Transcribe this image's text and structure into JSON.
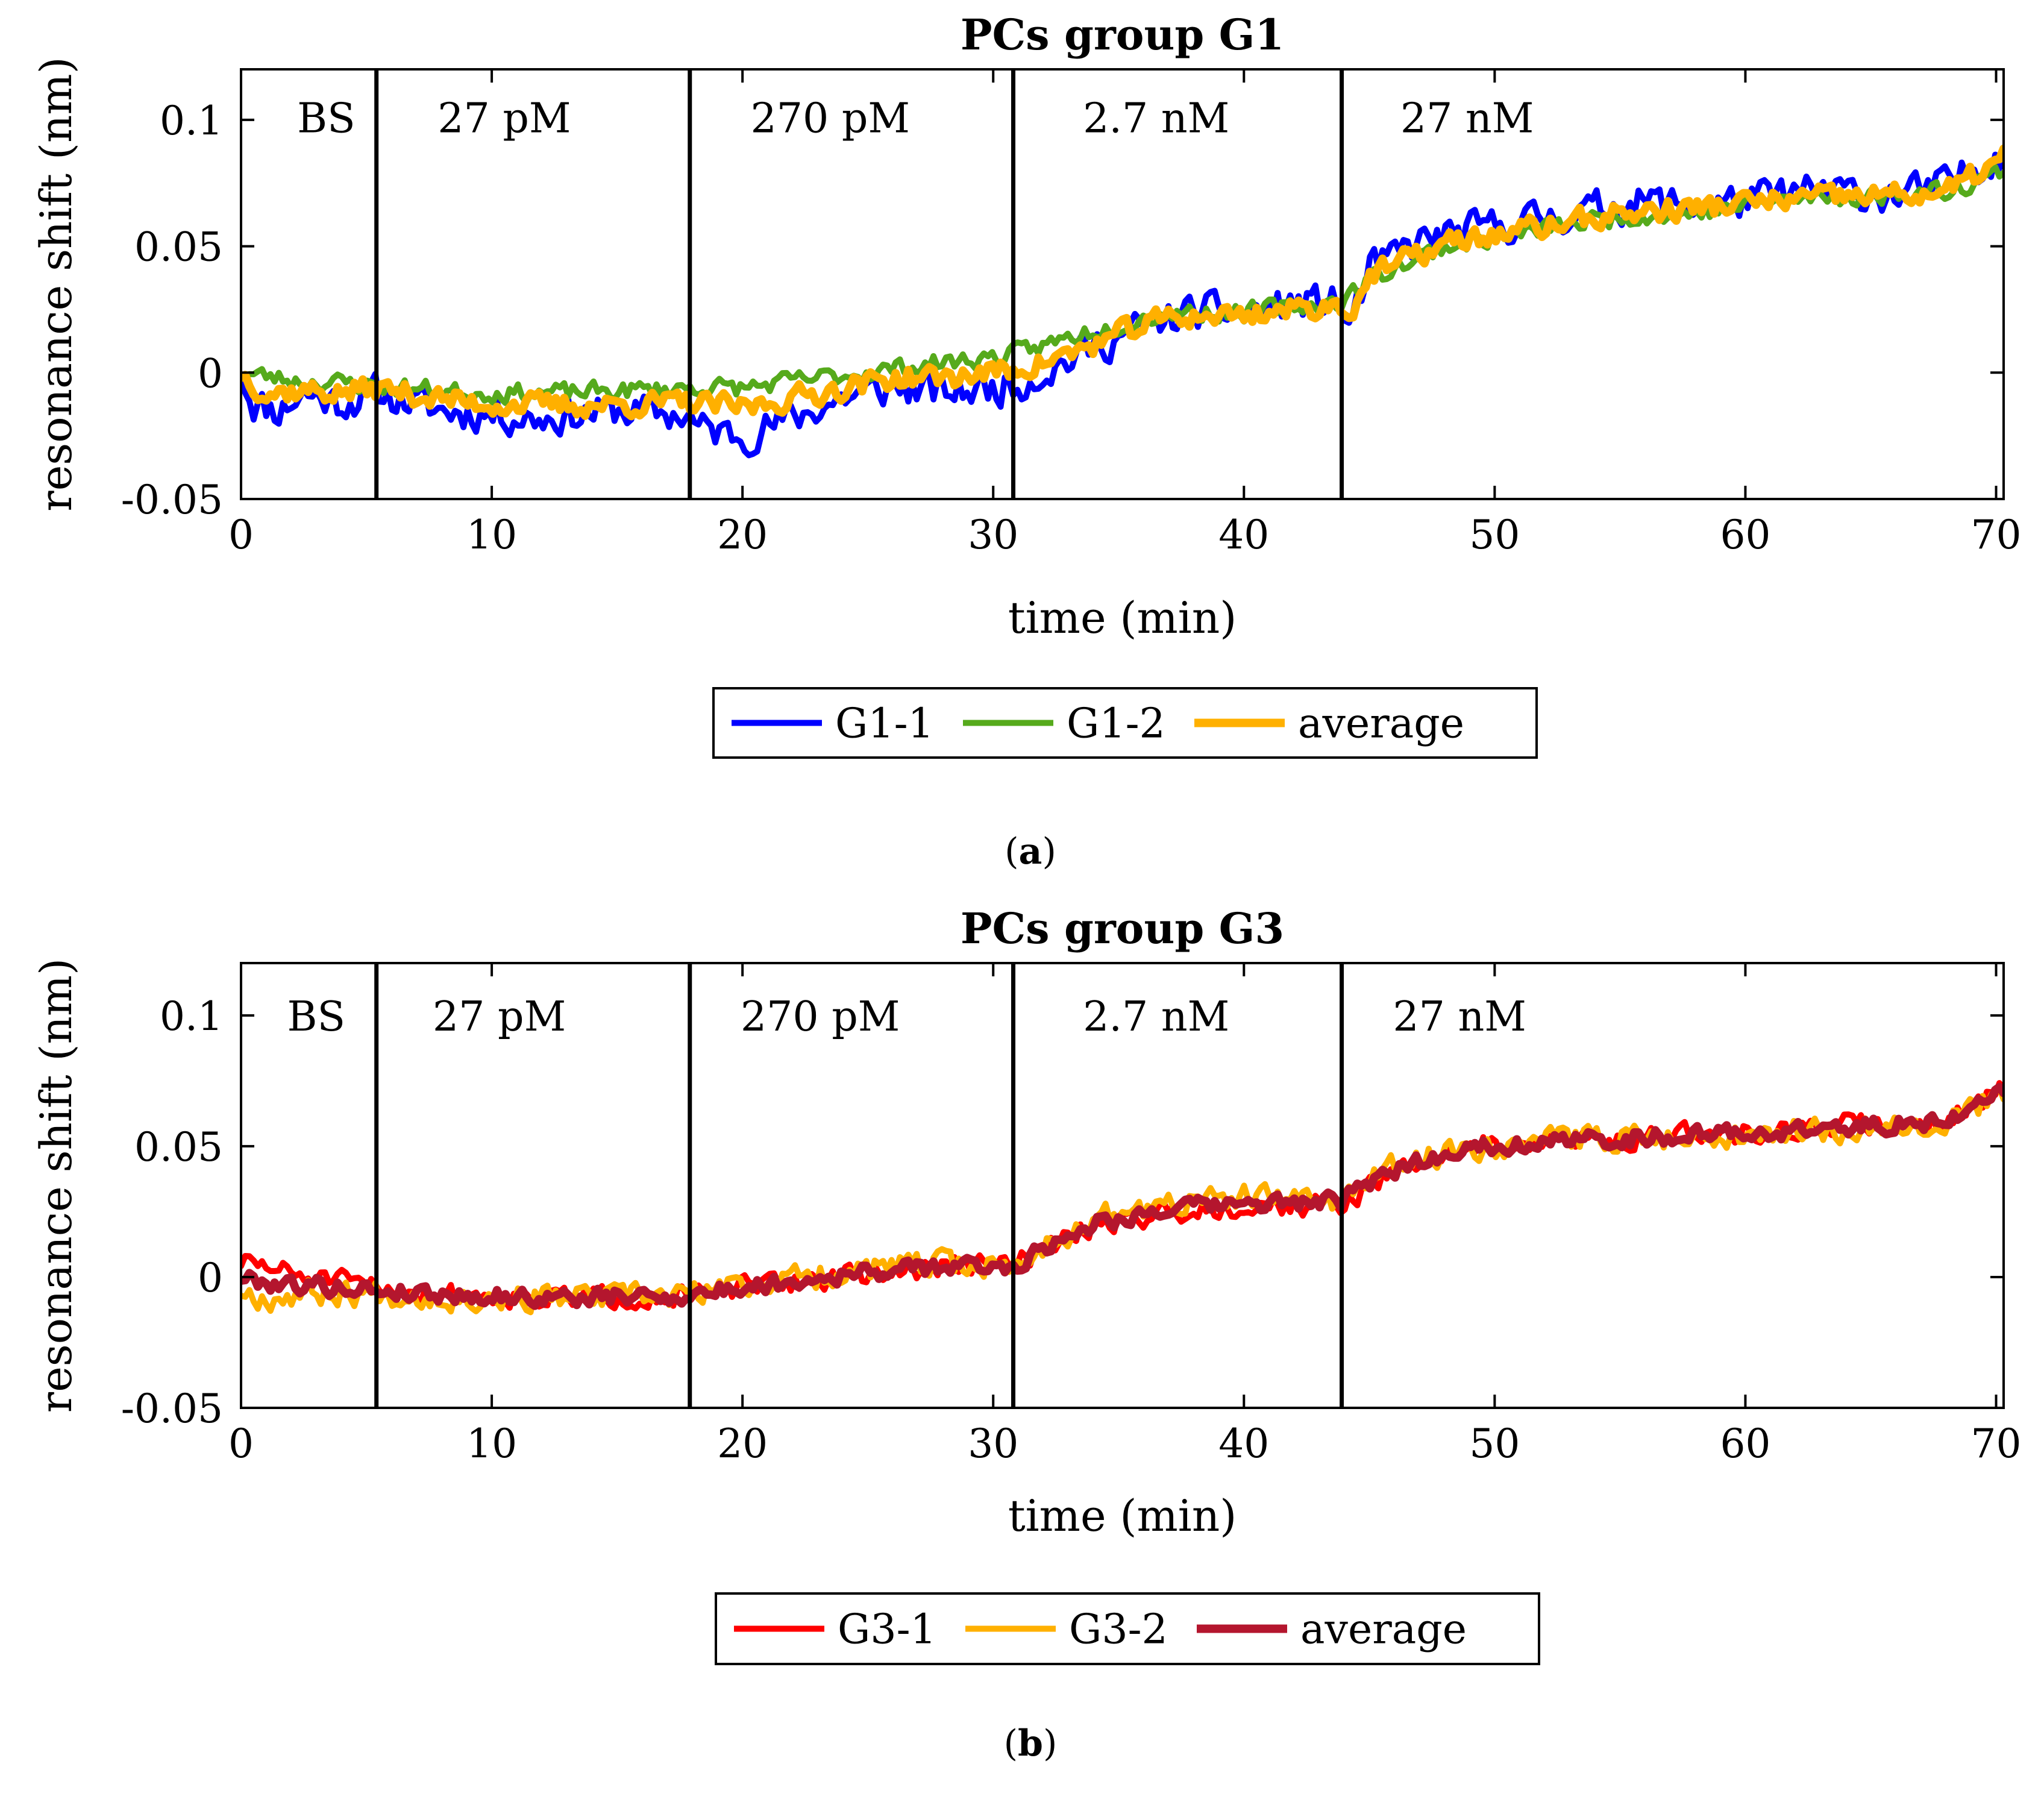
{
  "panels": [
    {
      "caption_label": "a",
      "chart_data": {
        "type": "line",
        "title": "PCs group G1",
        "xlabel": "time (min)",
        "ylabel": "resonance shift (nm)",
        "xlim": [
          0,
          70.3
        ],
        "ylim": [
          -0.05,
          0.12
        ],
        "xticks": [
          0,
          10,
          20,
          30,
          40,
          50,
          60,
          70
        ],
        "xtick_labels": [
          "0",
          "10",
          "20",
          "30",
          "40",
          "50",
          "60",
          "70"
        ],
        "yticks": [
          -0.05,
          0,
          0.05,
          0.1
        ],
        "ytick_labels": [
          "-0.05",
          "0",
          "0.05",
          "0.1"
        ],
        "grid": false,
        "legend_position": "bottom-center",
        "phase_lines": [
          5.4,
          17.9,
          30.8,
          43.9
        ],
        "phases": [
          {
            "label": "BS",
            "x": 3.4
          },
          {
            "label": "27 pM",
            "x": 10.5
          },
          {
            "label": "270 pM",
            "x": 23.5
          },
          {
            "label": "2.7 nM",
            "x": 36.5
          },
          {
            "label": "27 nM",
            "x": 48.9
          }
        ],
        "phase_label_y": 0.101,
        "series": [
          {
            "name": "G1-1",
            "color": "#0000FF",
            "width": 10,
            "noise": 0.0085,
            "seed": 11,
            "trend": [
              [
                0,
                0
              ],
              [
                0.5,
                -0.012
              ],
              [
                1.5,
                -0.015
              ],
              [
                2.5,
                -0.008
              ],
              [
                4,
                -0.012
              ],
              [
                5.4,
                -0.008
              ],
              [
                8,
                -0.015
              ],
              [
                12,
                -0.018
              ],
              [
                15,
                -0.015
              ],
              [
                17.9,
                -0.017
              ],
              [
                18.2,
                -0.022
              ],
              [
                20,
                -0.025
              ],
              [
                22,
                -0.018
              ],
              [
                24,
                -0.01
              ],
              [
                26,
                -0.006
              ],
              [
                28,
                -0.008
              ],
              [
                30.8,
                -0.005
              ],
              [
                32,
                0.0
              ],
              [
                34,
                0.01
              ],
              [
                36,
                0.018
              ],
              [
                38,
                0.024
              ],
              [
                40,
                0.024
              ],
              [
                42,
                0.027
              ],
              [
                43.9,
                0.028
              ],
              [
                44.1,
                0.016
              ],
              [
                45,
                0.04
              ],
              [
                47,
                0.052
              ],
              [
                50,
                0.058
              ],
              [
                53,
                0.063
              ],
              [
                56,
                0.068
              ],
              [
                58,
                0.066
              ],
              [
                60,
                0.068
              ],
              [
                63,
                0.072
              ],
              [
                66,
                0.07
              ],
              [
                68,
                0.074
              ],
              [
                70.3,
                0.088
              ]
            ]
          },
          {
            "name": "G1-2",
            "color": "#56AA1C",
            "width": 10,
            "noise": 0.0045,
            "seed": 23,
            "trend": [
              [
                0,
                0
              ],
              [
                2,
                -0.003
              ],
              [
                5.4,
                -0.005
              ],
              [
                9,
                -0.008
              ],
              [
                13,
                -0.008
              ],
              [
                17.9,
                -0.006
              ],
              [
                20,
                -0.006
              ],
              [
                24,
                -0.001
              ],
              [
                28,
                0.004
              ],
              [
                30.8,
                0.007
              ],
              [
                34,
                0.017
              ],
              [
                37,
                0.024
              ],
              [
                40,
                0.024
              ],
              [
                43.9,
                0.028
              ],
              [
                45,
                0.037
              ],
              [
                48,
                0.05
              ],
              [
                51,
                0.055
              ],
              [
                55,
                0.062
              ],
              [
                58,
                0.063
              ],
              [
                61,
                0.068
              ],
              [
                65,
                0.07
              ],
              [
                68,
                0.072
              ],
              [
                70.3,
                0.08
              ]
            ]
          },
          {
            "name": "average",
            "color": "#FFB000",
            "width": 14,
            "noise": 0.0055,
            "seed": 37,
            "trend": [
              [
                0,
                0
              ],
              [
                1,
                -0.008
              ],
              [
                2.5,
                -0.007
              ],
              [
                4,
                -0.008
              ],
              [
                5.4,
                -0.006
              ],
              [
                9,
                -0.012
              ],
              [
                13,
                -0.013
              ],
              [
                17.9,
                -0.012
              ],
              [
                20,
                -0.014
              ],
              [
                23,
                -0.008
              ],
              [
                26,
                -0.002
              ],
              [
                28,
                -0.002
              ],
              [
                30.8,
                0.001
              ],
              [
                33,
                0.007
              ],
              [
                35,
                0.015
              ],
              [
                37,
                0.022
              ],
              [
                40,
                0.023
              ],
              [
                43.9,
                0.027
              ],
              [
                44.1,
                0.022
              ],
              [
                45,
                0.038
              ],
              [
                48,
                0.051
              ],
              [
                51,
                0.056
              ],
              [
                55,
                0.063
              ],
              [
                58,
                0.065
              ],
              [
                61,
                0.068
              ],
              [
                65,
                0.07
              ],
              [
                68,
                0.071
              ],
              [
                70.3,
                0.085
              ]
            ]
          }
        ]
      }
    },
    {
      "caption_label": "b",
      "chart_data": {
        "type": "line",
        "title": "PCs group G3",
        "xlabel": "time (min)",
        "ylabel": "resonance shift (nm)",
        "xlim": [
          0,
          70.3
        ],
        "ylim": [
          -0.05,
          0.12
        ],
        "xticks": [
          0,
          10,
          20,
          30,
          40,
          50,
          60,
          70
        ],
        "xtick_labels": [
          "0",
          "10",
          "20",
          "30",
          "40",
          "50",
          "60",
          "70"
        ],
        "yticks": [
          -0.05,
          0,
          0.05,
          0.1
        ],
        "ytick_labels": [
          "-0.05",
          "0",
          "0.05",
          "0.1"
        ],
        "grid": false,
        "legend_position": "bottom-center",
        "phase_lines": [
          5.4,
          17.9,
          30.8,
          43.9
        ],
        "phases": [
          {
            "label": "BS",
            "x": 3.0
          },
          {
            "label": "27 pM",
            "x": 10.3
          },
          {
            "label": "270 pM",
            "x": 23.1
          },
          {
            "label": "2.7 nM",
            "x": 36.5
          },
          {
            "label": "27 nM",
            "x": 48.6
          }
        ],
        "phase_label_y": 0.1,
        "series": [
          {
            "name": "G3-1",
            "color": "#FF0000",
            "width": 10,
            "noise": 0.005,
            "seed": 51,
            "trend": [
              [
                0,
                0.006
              ],
              [
                1,
                0.004
              ],
              [
                2.5,
                0.0
              ],
              [
                5.4,
                -0.004
              ],
              [
                9,
                -0.007
              ],
              [
                13,
                -0.008
              ],
              [
                17.9,
                -0.007
              ],
              [
                20,
                -0.004
              ],
              [
                24,
                0.0
              ],
              [
                28,
                0.004
              ],
              [
                30.8,
                0.005
              ],
              [
                32,
                0.01
              ],
              [
                34,
                0.02
              ],
              [
                37,
                0.025
              ],
              [
                40,
                0.027
              ],
              [
                43.9,
                0.028
              ],
              [
                46,
                0.04
              ],
              [
                49,
                0.05
              ],
              [
                53,
                0.052
              ],
              [
                57,
                0.054
              ],
              [
                60,
                0.055
              ],
              [
                64,
                0.058
              ],
              [
                68,
                0.06
              ],
              [
                70.3,
                0.072
              ]
            ]
          },
          {
            "name": "G3-2",
            "color": "#FFB000",
            "width": 10,
            "noise": 0.006,
            "seed": 67,
            "trend": [
              [
                0,
                -0.005
              ],
              [
                1,
                -0.008
              ],
              [
                2.5,
                -0.006
              ],
              [
                5.4,
                -0.006
              ],
              [
                9,
                -0.008
              ],
              [
                13,
                -0.008
              ],
              [
                17.9,
                -0.007
              ],
              [
                20,
                -0.003
              ],
              [
                24,
                0.002
              ],
              [
                28,
                0.005
              ],
              [
                30.8,
                0.004
              ],
              [
                32,
                0.012
              ],
              [
                34,
                0.022
              ],
              [
                37,
                0.028
              ],
              [
                40,
                0.03
              ],
              [
                43.9,
                0.03
              ],
              [
                46,
                0.042
              ],
              [
                49,
                0.05
              ],
              [
                53,
                0.053
              ],
              [
                57,
                0.054
              ],
              [
                60,
                0.055
              ],
              [
                64,
                0.057
              ],
              [
                68,
                0.06
              ],
              [
                70.3,
                0.07
              ]
            ]
          },
          {
            "name": "average",
            "color": "#B4162E",
            "width": 14,
            "noise": 0.004,
            "seed": 79,
            "trend": [
              [
                0,
                0.0
              ],
              [
                1,
                -0.002
              ],
              [
                2.5,
                -0.003
              ],
              [
                5.4,
                -0.005
              ],
              [
                9,
                -0.007
              ],
              [
                13,
                -0.008
              ],
              [
                17.9,
                -0.007
              ],
              [
                20,
                -0.004
              ],
              [
                24,
                0.001
              ],
              [
                28,
                0.004
              ],
              [
                30.8,
                0.004
              ],
              [
                32,
                0.011
              ],
              [
                34,
                0.021
              ],
              [
                37,
                0.026
              ],
              [
                40,
                0.028
              ],
              [
                43.9,
                0.029
              ],
              [
                46,
                0.041
              ],
              [
                49,
                0.05
              ],
              [
                53,
                0.052
              ],
              [
                57,
                0.054
              ],
              [
                60,
                0.055
              ],
              [
                64,
                0.057
              ],
              [
                68,
                0.06
              ],
              [
                70.3,
                0.071
              ]
            ]
          }
        ]
      }
    }
  ]
}
